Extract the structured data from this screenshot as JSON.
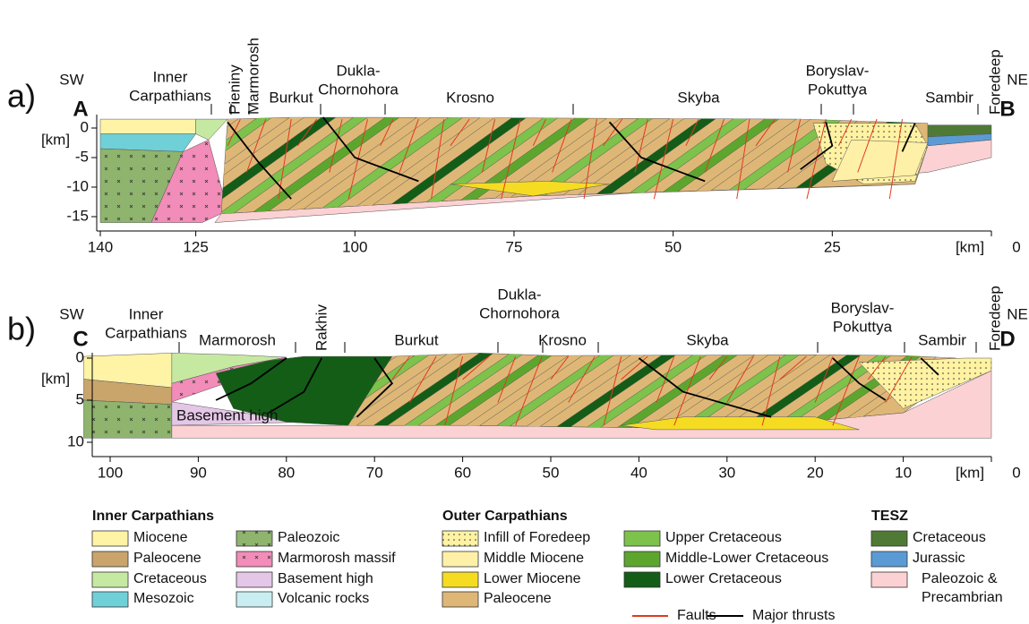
{
  "panels": [
    {
      "label": "a)",
      "sw": "SW",
      "ne": "NE",
      "start": "A",
      "end": "B",
      "depth_unit": "[km]",
      "distance_unit": "[km]",
      "xticks": [
        140,
        125,
        100,
        75,
        50,
        25,
        0
      ],
      "yticks": [
        0,
        -5,
        -10,
        -15
      ],
      "units": [
        [
          "Inner",
          "Carpathians"
        ],
        [
          "Pieniny"
        ],
        [
          "Marmorosh"
        ],
        [
          "Burkut"
        ],
        [
          "Dukla-",
          "Chornohora"
        ],
        [
          "Krosno"
        ],
        [
          "Skyba"
        ],
        [
          "Boryslav-",
          "Pokuttya"
        ],
        [
          "Sambir"
        ],
        [
          "Foredeep"
        ]
      ],
      "annotations": []
    },
    {
      "label": "b)",
      "sw": "SW",
      "ne": "NE",
      "start": "C",
      "end": "D",
      "depth_unit": "[km]",
      "distance_unit": "[km]",
      "xticks": [
        100,
        90,
        80,
        70,
        60,
        50,
        40,
        30,
        20,
        10,
        0
      ],
      "yticks": [
        0,
        5,
        10
      ],
      "units": [
        [
          "Inner",
          "Carpathians"
        ],
        [
          "Marmorosh"
        ],
        [
          "Rakhiv"
        ],
        [
          "Burkut"
        ],
        [
          "Dukla-",
          "Chornohora"
        ],
        [
          "Krosno"
        ],
        [
          "Skyba"
        ],
        [
          "Boryslav-",
          "Pokuttya"
        ],
        [
          "Sambir"
        ],
        [
          "Foredeep"
        ]
      ],
      "annotations": [
        "Basement high"
      ]
    }
  ],
  "legend": {
    "groups": [
      {
        "title": "Inner Carpathians",
        "items": [
          {
            "label": "Miocene",
            "color": "#fff3a6"
          },
          {
            "label": "Paleocene",
            "color": "#c9a56c"
          },
          {
            "label": "Cretaceous",
            "color": "#c6e9a2"
          },
          {
            "label": "Mesozoic",
            "color": "#6fd0d8"
          },
          {
            "label": "Paleozoic",
            "color": "#8fb46e"
          },
          {
            "label": "Marmorosh massif",
            "color": "#f28cb8"
          },
          {
            "label": "Basement high",
            "color": "#e4c6e6"
          },
          {
            "label": "Volcanic rocks",
            "color": "#c9eef2"
          }
        ]
      },
      {
        "title": "Outer Carpathians",
        "items": [
          {
            "label": "Infill of Foredeep",
            "color": "#fff2a2"
          },
          {
            "label": "Middle Miocene",
            "color": "#fff0a8"
          },
          {
            "label": "Lower Miocene",
            "color": "#f5dc22"
          },
          {
            "label": "Paleocene",
            "color": "#deb777"
          },
          {
            "label": "Upper Cretaceous",
            "color": "#7dc24b"
          },
          {
            "label": "Middle-Lower Cretaceous",
            "color": "#5da62e"
          },
          {
            "label": "Lower Cretaceous",
            "color": "#135d17"
          }
        ]
      },
      {
        "title": "TESZ",
        "items": [
          {
            "label": "Cretaceous",
            "color": "#4f7a35"
          },
          {
            "label": "Jurassic",
            "color": "#5b9bd5"
          },
          {
            "label": [
              "Paleozoic &",
              "Precambrian"
            ],
            "color": "#fbd1d3"
          }
        ]
      }
    ],
    "lines": [
      {
        "label": "Faults",
        "color": "#e03a1e"
      },
      {
        "label": "Major thrusts",
        "color": "#000000"
      }
    ]
  }
}
